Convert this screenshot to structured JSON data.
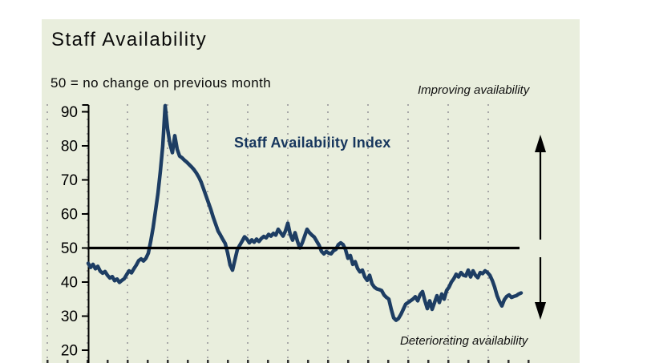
{
  "header": {
    "title": "Staff Availability",
    "subtitle": "50 =  no change on previous month"
  },
  "annotations": {
    "improving": "Improving availability",
    "deteriorating": "Deteriorating availability",
    "series_label": "Staff Availability Index"
  },
  "colors": {
    "panel_bg": "#e9eedd",
    "page_bg": "#ffffff",
    "line": "#1d3d63",
    "series_label_text": "#17365d",
    "grid_dot": "#a8a8a8",
    "axis": "#000000",
    "baseline": "#000000"
  },
  "chart_data": {
    "type": "line",
    "title": "Staff Availability",
    "note": "50 = no change on previous month",
    "ylabel": "",
    "xlabel": "",
    "ylim": [
      20,
      93
    ],
    "yticks": [
      90,
      80,
      70,
      60,
      50,
      40,
      30,
      20
    ],
    "baseline": 50,
    "grid": "vertical-dotted",
    "legend_position": "in-plot text label",
    "series": [
      {
        "name": "Staff Availability Index",
        "values": [
          45.5,
          44.3,
          45.2,
          43.9,
          44.6,
          43.2,
          42.6,
          43.1,
          42.0,
          41.2,
          41.6,
          40.4,
          40.9,
          39.9,
          40.5,
          41.0,
          42.2,
          43.3,
          42.7,
          43.9,
          45.0,
          46.3,
          46.8,
          46.2,
          47.0,
          48.5,
          52.0,
          56.0,
          61.0,
          66.0,
          72.5,
          80.0,
          91.8,
          85.0,
          80.5,
          78.0,
          83.0,
          79.0,
          77.0,
          76.5,
          75.8,
          75.2,
          74.5,
          73.8,
          73.0,
          72.0,
          70.8,
          69.3,
          67.3,
          65.3,
          63.3,
          61.3,
          59.0,
          57.0,
          55.0,
          53.8,
          52.5,
          51.3,
          48.5,
          45.0,
          43.5,
          46.5,
          49.5,
          50.8,
          52.0,
          53.3,
          52.6,
          51.5,
          52.4,
          51.7,
          52.6,
          51.9,
          52.8,
          53.4,
          53.0,
          54.0,
          53.5,
          54.3,
          53.8,
          55.5,
          54.5,
          53.5,
          55.0,
          57.3,
          54.0,
          52.3,
          54.5,
          52.0,
          50.0,
          51.5,
          53.5,
          55.5,
          54.5,
          53.8,
          53.2,
          52.0,
          50.8,
          49.0,
          48.3,
          49.0,
          48.5,
          48.3,
          49.2,
          49.6,
          51.0,
          51.5,
          51.0,
          49.5,
          47.0,
          47.8,
          45.2,
          46.0,
          44.0,
          43.0,
          43.5,
          41.5,
          40.5,
          42.0,
          39.5,
          38.5,
          38.0,
          37.8,
          37.5,
          36.2,
          35.5,
          35.0,
          32.0,
          29.5,
          28.8,
          29.3,
          30.5,
          32.0,
          33.5,
          34.0,
          34.5,
          35.0,
          35.7,
          34.5,
          36.3,
          37.2,
          34.5,
          32.2,
          34.5,
          32.0,
          34.0,
          36.0,
          34.0,
          36.5,
          35.0,
          37.5,
          38.5,
          40.0,
          41.0,
          42.3,
          41.5,
          42.8,
          42.0,
          41.8,
          43.5,
          41.5,
          43.3,
          42.0,
          41.3,
          42.8,
          42.5,
          43.3,
          42.8,
          42.0,
          40.5,
          38.5,
          36.0,
          34.3,
          33.0,
          34.8,
          35.8,
          36.2,
          35.5,
          35.8,
          36.0,
          36.5,
          36.8
        ]
      }
    ]
  }
}
